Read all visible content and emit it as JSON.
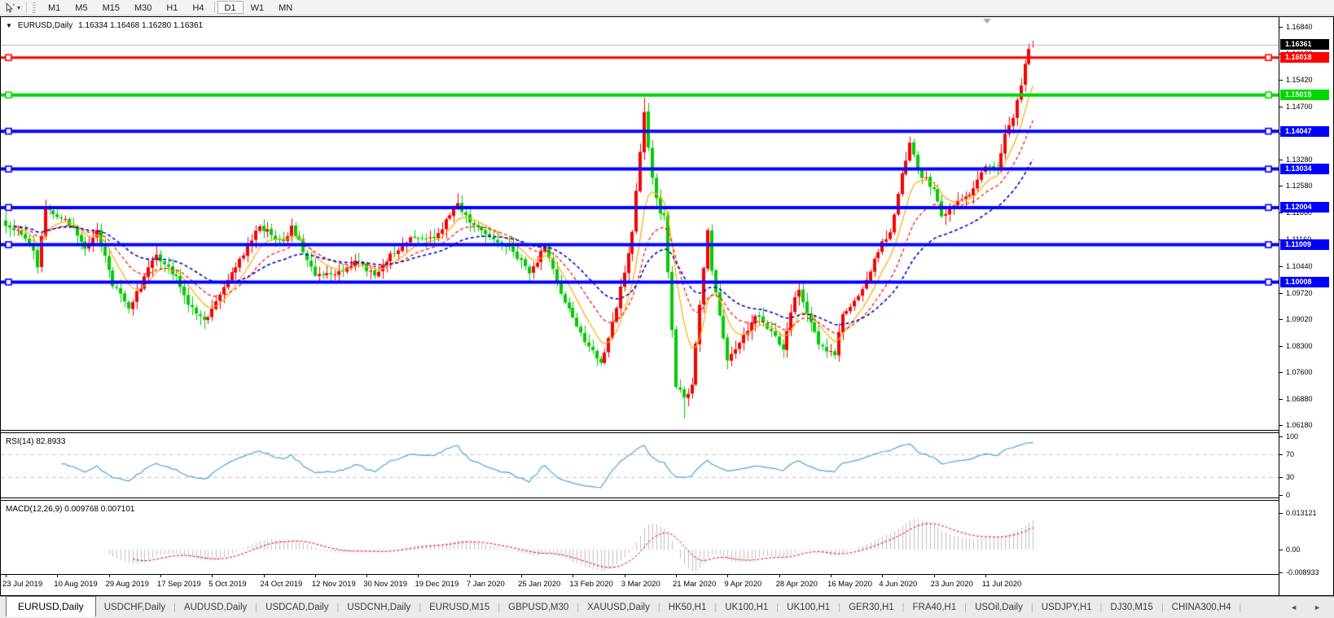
{
  "toolbar": {
    "cursor_tool_icon": "chart-cursor",
    "dropdown_glyph": "▾",
    "timeframes": [
      "M1",
      "M5",
      "M15",
      "M30",
      "H1",
      "H4",
      "D1",
      "W1",
      "MN"
    ],
    "active": "D1"
  },
  "chart": {
    "title": {
      "symbol": "EURUSD,Daily",
      "ohlc": "1.16334 1.16468 1.16280 1.16361"
    },
    "price_axis": {
      "ticks": [
        "1.16840",
        "1.16120",
        "1.15420",
        "1.14700",
        "1.13980",
        "1.13280",
        "1.12580",
        "1.11860",
        "1.11160",
        "1.10440",
        "1.09720",
        "1.09020",
        "1.08300",
        "1.07600",
        "1.06880",
        "1.06180"
      ]
    },
    "current_price": {
      "label": "1.16361",
      "value": 1.16361,
      "bg": "#000000",
      "fg": "#ffffff",
      "line_color": "#b8b8b8"
    },
    "levels": [
      {
        "label": "1.16018",
        "value": 1.16018,
        "color": "#ff0000",
        "width": 3
      },
      {
        "label": "1.15015",
        "value": 1.15015,
        "color": "#00d800",
        "width": 4
      },
      {
        "label": "1.14047",
        "value": 1.14047,
        "color": "#0000ff",
        "width": 4
      },
      {
        "label": "1.13034",
        "value": 1.13034,
        "color": "#0000ff",
        "width": 4
      },
      {
        "label": "1.12004",
        "value": 1.12004,
        "color": "#0000ff",
        "width": 4
      },
      {
        "label": "1.11009",
        "value": 1.11009,
        "color": "#0000ff",
        "width": 4
      },
      {
        "label": "1.10008",
        "value": 1.10008,
        "color": "#0000ff",
        "width": 4
      }
    ],
    "rsi": {
      "label": "RSI(14) 82.8933",
      "period": 14,
      "value": 82.8933,
      "axis": [
        {
          "text": "100",
          "v": 100
        },
        {
          "text": "70",
          "v": 70
        },
        {
          "text": "30",
          "v": 30
        },
        {
          "text": "0",
          "v": 0
        }
      ],
      "dashed_levels": [
        70,
        30
      ],
      "color": "#4ea5d9"
    },
    "macd": {
      "label": "MACD(12,26,9) 0.009768 0.007101",
      "fast": 12,
      "slow": 26,
      "signal": 9,
      "main_value": 0.009768,
      "signal_value": 0.007101,
      "axis": [
        {
          "text": "0.013121",
          "v": 0.013121
        },
        {
          "text": "0.00",
          "v": 0
        },
        {
          "text": "-0.008933",
          "v": -0.008933
        }
      ],
      "scale_max": 0.013121,
      "scale_min": -0.008933,
      "hist_color": "#c0c0c0",
      "signal_color": "#ff0000"
    },
    "date_axis": [
      "23 Jul 2019",
      "10 Aug 2019",
      "29 Aug 2019",
      "17 Sep 2019",
      "5 Oct 2019",
      "24 Oct 2019",
      "12 Nov 2019",
      "30 Nov 2019",
      "19 Dec 2019",
      "7 Jan 2020",
      "25 Jan 2020",
      "13 Feb 2020",
      "3 Mar 2020",
      "21 Mar 2020",
      "9 Apr 2020",
      "28 Apr 2020",
      "16 May 2020",
      "4 Jun 2020",
      "23 Jun 2020",
      "11 Jul 2020"
    ]
  },
  "chart_data": {
    "type": "candlestick",
    "symbol": "EURUSD",
    "timeframe": "Daily",
    "bars": 260,
    "price_range": [
      1.0618,
      1.1684
    ],
    "last_bar": {
      "open": 1.16334,
      "high": 1.16468,
      "low": 1.1628,
      "close": 1.16361
    },
    "close_anchors": [
      [
        0,
        1.1151
      ],
      [
        4,
        1.1128
      ],
      [
        7,
        1.1085
      ],
      [
        8,
        1.104
      ],
      [
        10,
        1.12
      ],
      [
        15,
        1.117
      ],
      [
        20,
        1.109
      ],
      [
        23,
        1.114
      ],
      [
        27,
        1.099
      ],
      [
        29,
        1.097
      ],
      [
        31,
        1.093
      ],
      [
        38,
        1.1074
      ],
      [
        43,
        1.1017
      ],
      [
        46,
        1.094
      ],
      [
        50,
        1.09
      ],
      [
        52,
        1.093
      ],
      [
        58,
        1.104
      ],
      [
        64,
        1.115
      ],
      [
        70,
        1.111
      ],
      [
        72,
        1.1152
      ],
      [
        78,
        1.1018
      ],
      [
        83,
        1.1021
      ],
      [
        88,
        1.1058
      ],
      [
        93,
        1.1018
      ],
      [
        97,
        1.1077
      ],
      [
        103,
        1.112
      ],
      [
        108,
        1.1118
      ],
      [
        114,
        1.1212
      ],
      [
        117,
        1.116
      ],
      [
        122,
        1.1122
      ],
      [
        127,
        1.1095
      ],
      [
        132,
        1.1024
      ],
      [
        136,
        1.1094
      ],
      [
        141,
        1.0946
      ],
      [
        146,
        1.084
      ],
      [
        150,
        1.0785
      ],
      [
        152,
        1.0851
      ],
      [
        156,
        1.1026
      ],
      [
        158,
        1.1135
      ],
      [
        161,
        1.1456
      ],
      [
        163,
        1.128
      ],
      [
        165,
        1.1184
      ],
      [
        166,
        1.118
      ],
      [
        169,
        1.072
      ],
      [
        171,
        1.0692
      ],
      [
        173,
        1.0726
      ],
      [
        177,
        1.114
      ],
      [
        178,
        1.1031
      ],
      [
        182,
        1.0791
      ],
      [
        186,
        1.086
      ],
      [
        189,
        1.091
      ],
      [
        193,
        1.087
      ],
      [
        196,
        1.082
      ],
      [
        199,
        1.096
      ],
      [
        200,
        1.098
      ],
      [
        205,
        1.0834
      ],
      [
        209,
        1.0805
      ],
      [
        211,
        1.0915
      ],
      [
        216,
        1.0982
      ],
      [
        221,
        1.111
      ],
      [
        223,
        1.1134
      ],
      [
        226,
        1.1292
      ],
      [
        228,
        1.1374
      ],
      [
        230,
        1.13
      ],
      [
        234,
        1.125
      ],
      [
        236,
        1.1177
      ],
      [
        240,
        1.1219
      ],
      [
        243,
        1.1234
      ],
      [
        247,
        1.131
      ],
      [
        250,
        1.13
      ],
      [
        252,
        1.1398
      ],
      [
        254,
        1.144
      ],
      [
        256,
        1.1527
      ],
      [
        257,
        1.1585
      ],
      [
        258,
        1.1625
      ],
      [
        259,
        1.16361
      ]
    ],
    "overrides": {
      "114": {
        "h": 1.1239
      },
      "150": {
        "l": 1.0778
      },
      "161": {
        "h": 1.1495
      },
      "171": {
        "l": 1.0636
      },
      "259": {
        "o": 1.16334,
        "h": 1.16468,
        "l": 1.1628,
        "c": 1.16361
      }
    },
    "bull_color": "#f80000",
    "bear_color": "#00cc00",
    "moving_averages": [
      {
        "period": 8,
        "color": "#ffaa00",
        "style": "solid",
        "width": 1.2
      },
      {
        "period": 17,
        "color": "#ff0000",
        "style": "dash",
        "width": 1.2
      },
      {
        "period": 34,
        "color": "#0000cd",
        "style": "dash",
        "width": 1.6
      }
    ]
  },
  "tabs": {
    "items": [
      "EURUSD,Daily",
      "USDCHF,Daily",
      "AUDUSD,Daily",
      "USDCAD,Daily",
      "USDCNH,Daily",
      "EURUSD,M15",
      "GBPUSD,M30",
      "XAUUSD,Daily",
      "HK50,H1",
      "UK100,H1",
      "UK100,H1",
      "GER30,H1",
      "FRA40,H1",
      "USOil,Daily",
      "USDJPY,H1",
      "DJ30,M15",
      "CHINA300,H4"
    ],
    "active": "EURUSD,Daily",
    "nav_left": "◄",
    "nav_right": "►"
  }
}
